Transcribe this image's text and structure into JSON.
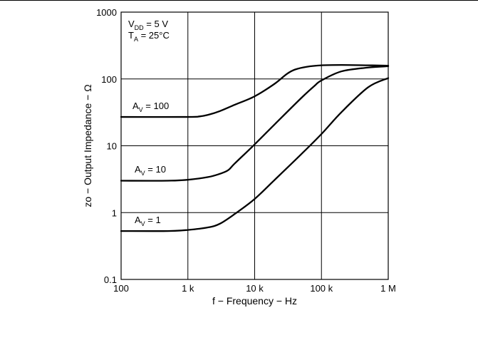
{
  "chart_data": {
    "type": "line",
    "xlabel": "f − Frequency − Hz",
    "ylabel": "zo − Output Impedance − Ω",
    "x_scale": "log",
    "y_scale": "log",
    "xlim": [
      100,
      1000000
    ],
    "ylim": [
      0.1,
      1000
    ],
    "grid": true,
    "x_ticks": [
      {
        "value": 100,
        "label": "100"
      },
      {
        "value": 1000,
        "label": "1 k"
      },
      {
        "value": 10000,
        "label": "10 k"
      },
      {
        "value": 100000,
        "label": "100 k"
      },
      {
        "value": 1000000,
        "label": "1 M"
      }
    ],
    "y_ticks": [
      {
        "value": 0.1,
        "label": "0.1"
      },
      {
        "value": 1,
        "label": "1"
      },
      {
        "value": 10,
        "label": "10"
      },
      {
        "value": 100,
        "label": "100"
      },
      {
        "value": 1000,
        "label": "1000"
      }
    ],
    "conditions": [
      {
        "main": "V",
        "sub": "DD",
        "rest": " = 5 V"
      },
      {
        "main": "T",
        "sub": "A",
        "rest": " = 25°C"
      }
    ],
    "series": [
      {
        "label_main": "A",
        "label_sub": "V",
        "label_rest": " = 100",
        "points": [
          [
            100,
            27
          ],
          [
            1000,
            27
          ],
          [
            1500,
            27.5
          ],
          [
            2000,
            29
          ],
          [
            3000,
            33
          ],
          [
            5000,
            41
          ],
          [
            10000,
            55
          ],
          [
            20000,
            85
          ],
          [
            30000,
            118
          ],
          [
            40000,
            138
          ],
          [
            60000,
            152
          ],
          [
            100000,
            160
          ],
          [
            200000,
            162
          ],
          [
            500000,
            160
          ],
          [
            1000000,
            158
          ]
        ]
      },
      {
        "label_main": "A",
        "label_sub": "V",
        "label_rest": " = 10",
        "points": [
          [
            100,
            3
          ],
          [
            500,
            3
          ],
          [
            1000,
            3.1
          ],
          [
            2000,
            3.4
          ],
          [
            3000,
            3.8
          ],
          [
            4000,
            4.3
          ],
          [
            5000,
            5.4
          ],
          [
            10000,
            10.5
          ],
          [
            20000,
            21
          ],
          [
            50000,
            52
          ],
          [
            80000,
            80
          ],
          [
            100000,
            95
          ],
          [
            200000,
            130
          ],
          [
            500000,
            148
          ],
          [
            1000000,
            155
          ]
        ]
      },
      {
        "label_main": "A",
        "label_sub": "V",
        "label_rest": " = 1",
        "points": [
          [
            100,
            0.53
          ],
          [
            500,
            0.53
          ],
          [
            1000,
            0.55
          ],
          [
            2000,
            0.6
          ],
          [
            3000,
            0.68
          ],
          [
            5000,
            0.95
          ],
          [
            10000,
            1.6
          ],
          [
            20000,
            3.1
          ],
          [
            50000,
            7.5
          ],
          [
            100000,
            15
          ],
          [
            200000,
            32
          ],
          [
            500000,
            75
          ],
          [
            1000000,
            103
          ]
        ]
      }
    ]
  }
}
